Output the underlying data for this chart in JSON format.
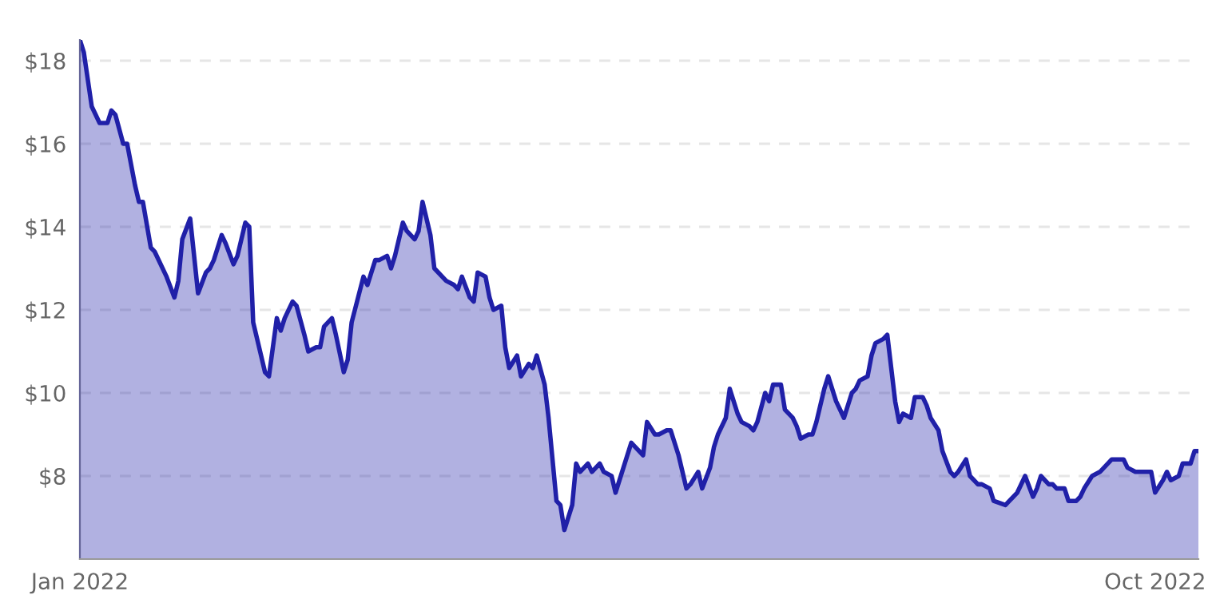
{
  "chart_data": {
    "type": "area",
    "x": [
      "2022-01-01",
      "2022-01-02",
      "2022-01-04",
      "2022-01-06",
      "2022-01-08",
      "2022-01-09",
      "2022-01-10",
      "2022-01-12",
      "2022-01-13",
      "2022-01-15",
      "2022-01-16",
      "2022-01-17",
      "2022-01-19",
      "2022-01-20",
      "2022-01-23",
      "2022-01-25",
      "2022-01-26",
      "2022-01-27",
      "2022-01-29",
      "2022-01-31",
      "2022-02-02",
      "2022-02-03",
      "2022-02-04",
      "2022-02-06",
      "2022-02-07",
      "2022-02-09",
      "2022-02-10",
      "2022-02-12",
      "2022-02-13",
      "2022-02-14",
      "2022-02-16",
      "2022-02-17",
      "2022-02-18",
      "2022-02-20",
      "2022-02-21",
      "2022-02-22",
      "2022-02-24",
      "2022-02-25",
      "2022-02-27",
      "2022-02-28",
      "2022-03-02",
      "2022-03-03",
      "2022-03-04",
      "2022-03-06",
      "2022-03-07",
      "2022-03-09",
      "2022-03-10",
      "2022-03-11",
      "2022-03-14",
      "2022-03-15",
      "2022-03-17",
      "2022-03-18",
      "2022-03-20",
      "2022-03-21",
      "2022-03-22",
      "2022-03-24",
      "2022-03-25",
      "2022-03-27",
      "2022-03-28",
      "2022-03-29",
      "2022-03-31",
      "2022-04-01",
      "2022-04-04",
      "2022-04-06",
      "2022-04-07",
      "2022-04-08",
      "2022-04-10",
      "2022-04-11",
      "2022-04-12",
      "2022-04-14",
      "2022-04-15",
      "2022-04-16",
      "2022-04-18",
      "2022-04-19",
      "2022-04-20",
      "2022-04-22",
      "2022-04-23",
      "2022-04-25",
      "2022-04-26",
      "2022-04-27",
      "2022-04-29",
      "2022-04-30",
      "2022-05-02",
      "2022-05-03",
      "2022-05-04",
      "2022-05-06",
      "2022-05-07",
      "2022-05-08",
      "2022-05-10",
      "2022-05-11",
      "2022-05-13",
      "2022-05-14",
      "2022-05-16",
      "2022-05-17",
      "2022-05-19",
      "2022-05-21",
      "2022-05-22",
      "2022-05-24",
      "2022-05-25",
      "2022-05-27",
      "2022-05-28",
      "2022-05-30",
      "2022-05-31",
      "2022-06-02",
      "2022-06-04",
      "2022-06-05",
      "2022-06-07",
      "2022-06-08",
      "2022-06-10",
      "2022-06-11",
      "2022-06-12",
      "2022-06-14",
      "2022-06-15",
      "2022-06-17",
      "2022-06-18",
      "2022-06-20",
      "2022-06-21",
      "2022-06-22",
      "2022-06-24",
      "2022-06-25",
      "2022-06-26",
      "2022-06-28",
      "2022-06-29",
      "2022-07-01",
      "2022-07-02",
      "2022-07-03",
      "2022-07-05",
      "2022-07-06",
      "2022-07-07",
      "2022-07-09",
      "2022-07-10",
      "2022-07-12",
      "2022-07-13",
      "2022-07-14",
      "2022-07-16",
      "2022-07-17",
      "2022-07-18",
      "2022-07-20",
      "2022-07-21",
      "2022-07-22",
      "2022-07-24",
      "2022-07-25",
      "2022-07-27",
      "2022-07-28",
      "2022-07-29",
      "2022-07-31",
      "2022-08-01",
      "2022-08-03",
      "2022-08-04",
      "2022-08-05",
      "2022-08-07",
      "2022-08-08",
      "2022-08-10",
      "2022-08-11",
      "2022-08-12",
      "2022-08-14",
      "2022-08-15",
      "2022-08-17",
      "2022-08-18",
      "2022-08-20",
      "2022-08-21",
      "2022-08-24",
      "2022-08-25",
      "2022-08-27",
      "2022-08-29",
      "2022-08-31",
      "2022-09-01",
      "2022-09-02",
      "2022-09-04",
      "2022-09-05",
      "2022-09-06",
      "2022-09-08",
      "2022-09-09",
      "2022-09-11",
      "2022-09-12",
      "2022-09-13",
      "2022-09-15",
      "2022-09-17",
      "2022-09-18",
      "2022-09-20",
      "2022-09-22",
      "2022-09-23",
      "2022-09-24",
      "2022-09-26",
      "2022-09-29",
      "2022-09-30",
      "2022-10-01",
      "2022-10-03",
      "2022-10-04",
      "2022-10-05",
      "2022-10-07",
      "2022-10-08",
      "2022-10-10",
      "2022-10-11",
      "2022-10-12"
    ],
    "series": [
      {
        "color": "#2020a8",
        "values": [
          18.5,
          18.2,
          16.9,
          16.5,
          16.5,
          16.8,
          16.7,
          16.0,
          16.0,
          15.0,
          14.6,
          14.6,
          13.5,
          13.4,
          12.8,
          12.3,
          12.7,
          13.7,
          14.2,
          12.4,
          12.9,
          13.0,
          13.2,
          13.8,
          13.6,
          13.1,
          13.3,
          14.1,
          14.0,
          11.7,
          10.9,
          10.5,
          10.4,
          11.8,
          11.5,
          11.8,
          12.2,
          12.1,
          11.4,
          11.0,
          11.1,
          11.1,
          11.6,
          11.8,
          11.4,
          10.5,
          10.8,
          11.7,
          12.8,
          12.6,
          13.2,
          13.2,
          13.3,
          13.0,
          13.3,
          14.1,
          13.9,
          13.7,
          13.9,
          14.6,
          13.8,
          13.0,
          12.7,
          12.6,
          12.5,
          12.8,
          12.3,
          12.2,
          12.9,
          12.8,
          12.3,
          12.0,
          12.1,
          11.1,
          10.6,
          10.9,
          10.4,
          10.7,
          10.6,
          10.9,
          10.2,
          9.4,
          7.4,
          7.3,
          6.7,
          7.3,
          8.3,
          8.1,
          8.3,
          8.1,
          8.3,
          8.1,
          8.0,
          7.6,
          8.2,
          8.8,
          8.7,
          8.5,
          9.3,
          9.0,
          9.0,
          9.1,
          9.1,
          8.5,
          7.7,
          7.8,
          8.1,
          7.7,
          8.2,
          8.7,
          9.0,
          9.4,
          10.1,
          9.5,
          9.3,
          9.2,
          9.1,
          9.3,
          10.0,
          9.8,
          10.2,
          10.2,
          9.6,
          9.4,
          9.2,
          8.9,
          9.0,
          9.0,
          9.3,
          10.1,
          10.4,
          9.8,
          9.6,
          9.4,
          10.0,
          10.1,
          10.3,
          10.4,
          10.9,
          11.2,
          11.3,
          11.4,
          9.8,
          9.3,
          9.5,
          9.4,
          9.9,
          9.9,
          9.7,
          9.4,
          9.1,
          8.6,
          8.1,
          8.0,
          8.1,
          8.4,
          8.0,
          7.8,
          7.8,
          7.7,
          7.4,
          7.3,
          7.4,
          7.6,
          8.0,
          7.5,
          7.7,
          8.0,
          7.8,
          7.8,
          7.7,
          7.7,
          7.4,
          7.4,
          7.5,
          7.7,
          8.0,
          8.1,
          8.2,
          8.4,
          8.4,
          8.4,
          8.2,
          8.1,
          8.1,
          8.1,
          7.6,
          7.9,
          8.1,
          7.9,
          8.0,
          8.3,
          8.3,
          8.6,
          8.6
        ]
      }
    ],
    "xlim": [
      "2022-01-01",
      "2022-10-12"
    ],
    "xticks": [
      {
        "value": "2022-01-01",
        "label": "Jan 2022"
      },
      {
        "value": "2022-10-01",
        "label": "Oct 2022"
      }
    ],
    "ylim": [
      6,
      18.5
    ],
    "yticks": [
      {
        "value": 8,
        "label": "$8"
      },
      {
        "value": 10,
        "label": "$10"
      },
      {
        "value": 12,
        "label": "$12"
      },
      {
        "value": 14,
        "label": "$14"
      },
      {
        "value": 16,
        "label": "$16"
      },
      {
        "value": 18,
        "label": "$18"
      }
    ],
    "grid": "y",
    "line_style": "solid"
  }
}
